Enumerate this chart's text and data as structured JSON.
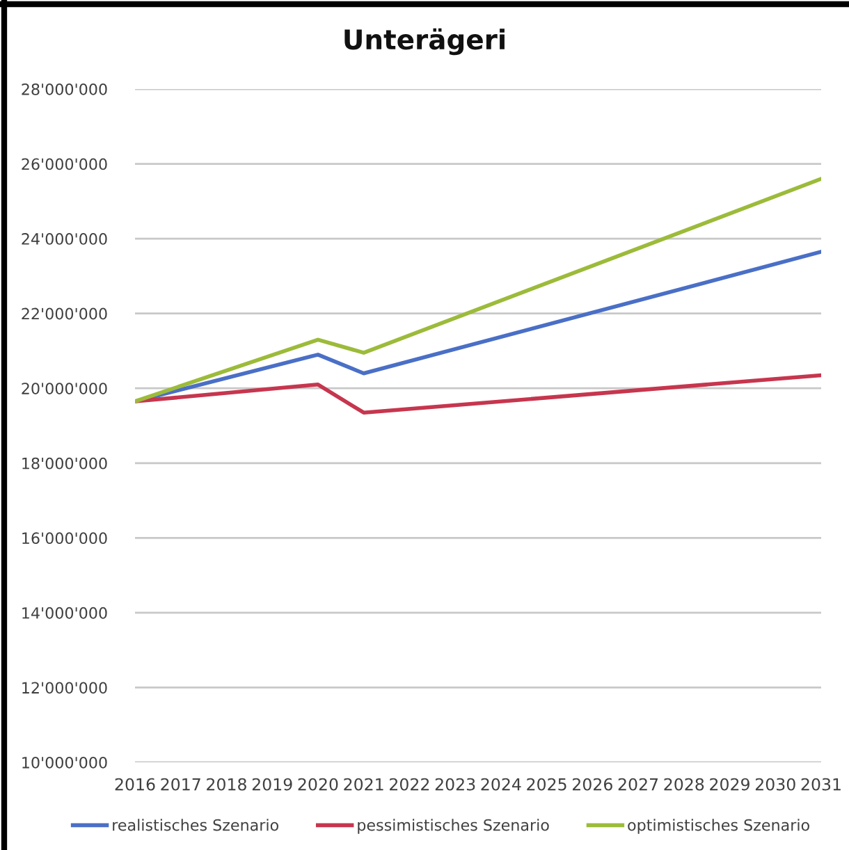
{
  "chart_data": {
    "type": "line",
    "title": "Unterägeri",
    "xlim": [
      2016,
      2031
    ],
    "xticks": [
      2016,
      2017,
      2018,
      2019,
      2020,
      2021,
      2022,
      2023,
      2024,
      2025,
      2026,
      2027,
      2028,
      2029,
      2030,
      2031
    ],
    "ylim": [
      10000000,
      28000000
    ],
    "yticks": [
      {
        "value": 10000000,
        "label": "10'000'000"
      },
      {
        "value": 12000000,
        "label": "12'000'000"
      },
      {
        "value": 14000000,
        "label": "14'000'000"
      },
      {
        "value": 16000000,
        "label": "16'000'000"
      },
      {
        "value": 18000000,
        "label": "18'000'000"
      },
      {
        "value": 20000000,
        "label": "20'000'000"
      },
      {
        "value": 22000000,
        "label": "22'000'000"
      },
      {
        "value": 24000000,
        "label": "24'000'000"
      },
      {
        "value": 26000000,
        "label": "26'000'000"
      },
      {
        "value": 28000000,
        "label": "28'000'000"
      }
    ],
    "grid": "y",
    "legend": "bottom",
    "marker": "none",
    "line_style": "solid",
    "series": [
      {
        "name": "realistisches Szenario",
        "color": "#4a6fc6",
        "x": [
          2016,
          2020,
          2021,
          2031
        ],
        "values": [
          19650000,
          20900000,
          20400000,
          23650000
        ]
      },
      {
        "name": "pessimistisches Szenario",
        "color": "#c6364e",
        "x": [
          2016,
          2020,
          2021,
          2031
        ],
        "values": [
          19650000,
          20100000,
          19350000,
          20350000
        ]
      },
      {
        "name": "optimistisches Szenario",
        "color": "#9cbb3a",
        "x": [
          2016,
          2020,
          2021,
          2031
        ],
        "values": [
          19650000,
          21300000,
          20950000,
          25600000
        ]
      }
    ]
  }
}
